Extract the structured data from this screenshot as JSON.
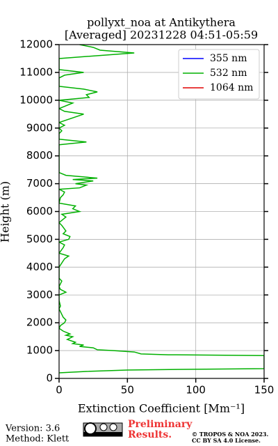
{
  "chart_data": {
    "type": "line",
    "title": "pollyxt_noa at Antikythera",
    "subtitle": "[Averaged] 20231228 04:51-05:59",
    "xlabel": "Extinction Coefficient [Mm⁻¹]",
    "ylabel": "Height (m)",
    "xlim": [
      0,
      150
    ],
    "xticks": [
      0,
      50,
      100,
      150
    ],
    "ylim": [
      0,
      12000
    ],
    "yticks": [
      0,
      1000,
      2000,
      3000,
      4000,
      5000,
      6000,
      7000,
      8000,
      9000,
      10000,
      11000,
      12000
    ],
    "grid": true,
    "legend": "upper right",
    "series": [
      {
        "name": "355 nm",
        "color": "#0000ff",
        "heights": [],
        "values": []
      },
      {
        "name": "532 nm",
        "color": "#00b000",
        "heights": [
          200,
          250,
          300,
          330,
          350,
          820,
          850,
          880,
          950,
          1000,
          1030,
          1100,
          1150,
          1200,
          1250,
          1300,
          1400,
          1500,
          1550,
          1600,
          1700,
          1800,
          1900,
          2000,
          2100,
          2200,
          2300,
          2500,
          2600,
          2800,
          3000,
          3100,
          3200,
          3300,
          3500,
          3600,
          3800,
          4000,
          4300,
          4400,
          4500,
          4700,
          4800,
          4900,
          5000,
          5100,
          5200,
          5300,
          5500,
          5600,
          5800,
          5900,
          6000,
          6100,
          6200,
          6300,
          6500,
          6600,
          6700,
          6800,
          6850,
          6950,
          7000,
          7100,
          7150,
          7200,
          7300,
          7400,
          7500,
          8400,
          8500,
          8600,
          8800,
          8900,
          9000,
          9100,
          9200,
          9500,
          9600,
          9700,
          9900,
          10000,
          10100,
          10200,
          10300,
          10400,
          10500,
          10800,
          10900,
          11000,
          11100,
          11200,
          11500,
          11700,
          11800,
          11900,
          12000
        ],
        "values": [
          0,
          20,
          50,
          100,
          150,
          150,
          80,
          60,
          55,
          40,
          28,
          25,
          15,
          18,
          10,
          12,
          6,
          10,
          5,
          8,
          3,
          0,
          1,
          4,
          5,
          3,
          2,
          0,
          1,
          0,
          0,
          5,
          1,
          0,
          2,
          0,
          0,
          0,
          4,
          7,
          0,
          3,
          4,
          0,
          7,
          8,
          3,
          5,
          2,
          0,
          5,
          2,
          15,
          10,
          12,
          0,
          1,
          3,
          4,
          0,
          15,
          20,
          12,
          25,
          10,
          28,
          5,
          0,
          0,
          0,
          20,
          0,
          0,
          2,
          0,
          4,
          0,
          18,
          4,
          0,
          10,
          0,
          22,
          20,
          28,
          18,
          0,
          0,
          4,
          18,
          0,
          0,
          0,
          55,
          30,
          25,
          15
        ]
      },
      {
        "name": "1064 nm",
        "color": "#e00000",
        "heights": [],
        "values": []
      }
    ]
  },
  "footer": {
    "version": "Version: 3.6",
    "method": "Method: Klett",
    "preliminary": [
      "Preliminary",
      "Results."
    ],
    "copyright": [
      "© TROPOS & NOA 2023.",
      "CC BY SA 4.0 License."
    ]
  }
}
